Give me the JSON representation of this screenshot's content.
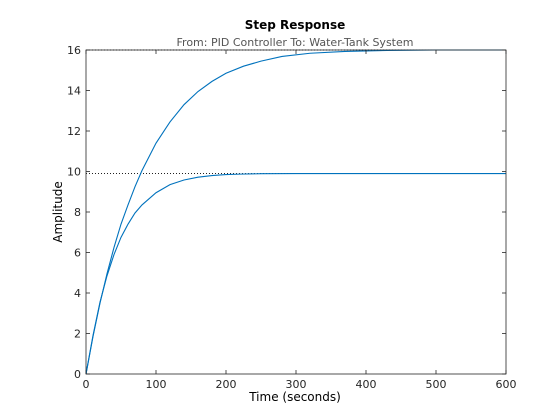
{
  "chart_data": {
    "type": "line",
    "title": "Step Response",
    "subtitle": "From: PID Controller  To: Water-Tank System",
    "xlabel": "Time (seconds)",
    "ylabel": "Amplitude",
    "xlim": [
      0,
      600
    ],
    "ylim": [
      0,
      16
    ],
    "xticks": [
      0,
      100,
      200,
      300,
      400,
      500,
      600
    ],
    "yticks": [
      0,
      2,
      4,
      6,
      8,
      10,
      12,
      14,
      16
    ],
    "grid": false,
    "colors": {
      "series": "#0072BD",
      "reference": "#000000",
      "axes": "#262626"
    },
    "series": [
      {
        "x": [
          0,
          10,
          20,
          30,
          40,
          50,
          60,
          70,
          80,
          100,
          120,
          140,
          160,
          180,
          200,
          225,
          250,
          280,
          320,
          370,
          430,
          500,
          600
        ],
        "values": [
          0,
          1.85,
          3.5,
          4.95,
          6.25,
          7.4,
          8.35,
          9.25,
          10.05,
          11.4,
          12.45,
          13.3,
          13.95,
          14.45,
          14.85,
          15.2,
          15.45,
          15.68,
          15.84,
          15.93,
          15.98,
          16.0,
          16.0
        ]
      },
      {
        "x": [
          0,
          10,
          20,
          30,
          40,
          50,
          60,
          70,
          80,
          100,
          120,
          140,
          160,
          180,
          200,
          220,
          250,
          300,
          400,
          500,
          600
        ],
        "values": [
          0,
          1.9,
          3.55,
          4.85,
          5.9,
          6.75,
          7.4,
          7.95,
          8.35,
          8.95,
          9.35,
          9.58,
          9.72,
          9.8,
          9.85,
          9.87,
          9.89,
          9.9,
          9.9,
          9.9,
          9.9
        ]
      }
    ],
    "reference_lines": [
      16,
      9.9
    ]
  }
}
